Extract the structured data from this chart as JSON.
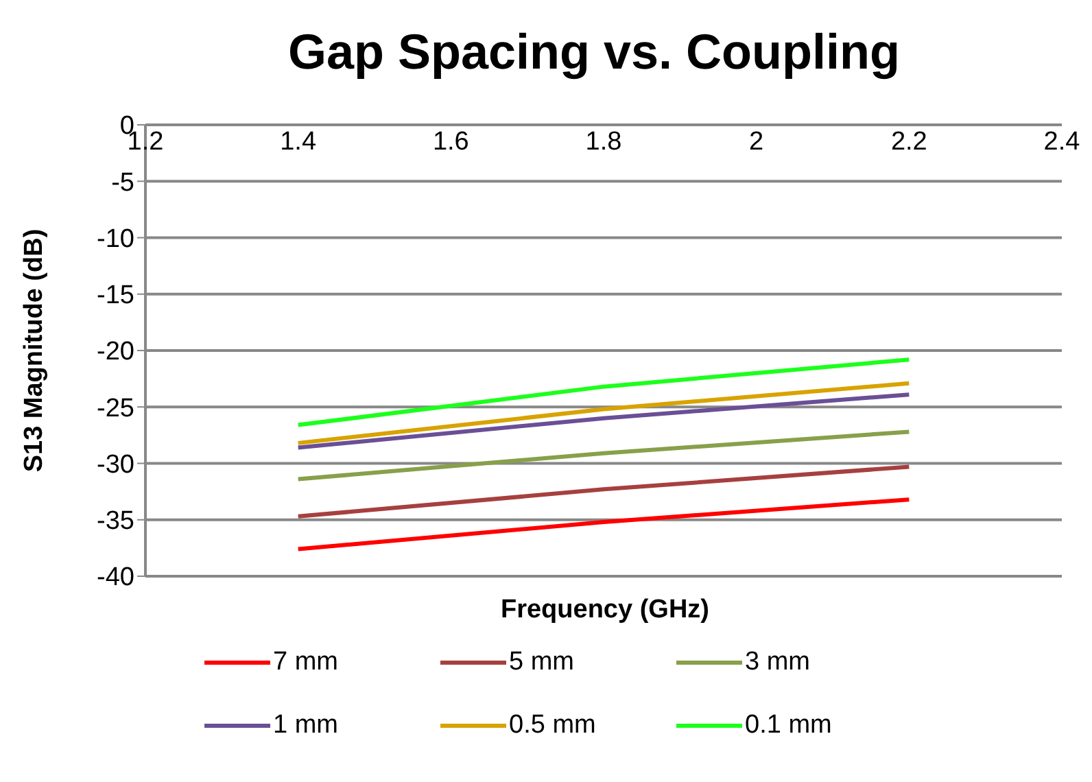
{
  "chart_data": {
    "type": "line",
    "title": "Gap Spacing vs. Coupling",
    "xlabel": "Frequency (GHz)",
    "ylabel": "S13 Magnitude (dB)",
    "x": [
      1.4,
      1.8,
      2.2
    ],
    "series": [
      {
        "name": "7 mm",
        "color": "#ff0000",
        "values": [
          -37.6,
          -35.2,
          -33.2
        ]
      },
      {
        "name": "5 mm",
        "color": "#a6403f",
        "values": [
          -34.7,
          -32.3,
          -30.3
        ]
      },
      {
        "name": "3 mm",
        "color": "#88a04a",
        "values": [
          -31.4,
          -29.1,
          -27.2
        ]
      },
      {
        "name": "1 mm",
        "color": "#6a4f96",
        "values": [
          -28.6,
          -26.0,
          -23.9
        ]
      },
      {
        "name": "0.5 mm",
        "color": "#d8a300",
        "values": [
          -28.2,
          -25.2,
          -22.9
        ]
      },
      {
        "name": "0.1 mm",
        "color": "#1cff1c",
        "values": [
          -26.6,
          -23.2,
          -20.8
        ]
      }
    ],
    "xlim": [
      1.2,
      2.4
    ],
    "xticks": [
      1.2,
      1.4,
      1.6,
      1.8,
      2,
      2.2,
      2.4
    ],
    "ylim": [
      -40,
      0
    ],
    "yticks": [
      -40,
      -35,
      -30,
      -25,
      -20,
      -15,
      -10,
      -5,
      0
    ],
    "grid": "y",
    "legend": "bottom",
    "marker": "none",
    "line_style": "solid"
  }
}
